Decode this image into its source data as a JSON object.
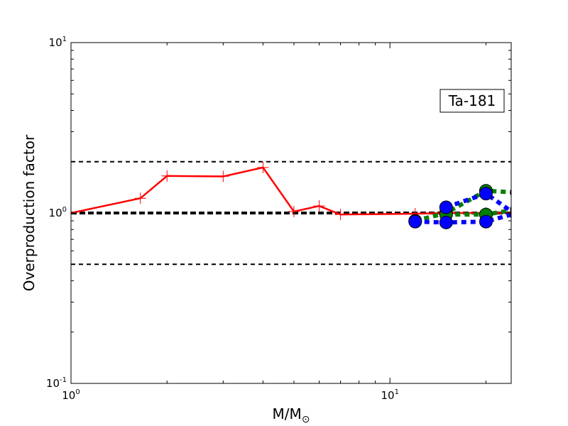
{
  "chart_data": {
    "type": "line",
    "xlabel": "M/M",
    "xlabel_symbol": "⊙",
    "ylabel": "Overproduction factor",
    "x_scale": "log",
    "y_scale": "log",
    "xlim": [
      1,
      24
    ],
    "ylim": [
      0.1,
      10
    ],
    "x_ticks": [
      {
        "value": 1,
        "base": "10",
        "exp": "0"
      },
      {
        "value": 10,
        "base": "10",
        "exp": "1"
      }
    ],
    "y_ticks": [
      {
        "value": 0.1,
        "base": "10",
        "exp": "-1"
      },
      {
        "value": 1,
        "base": "10",
        "exp": "0"
      },
      {
        "value": 10,
        "base": "10",
        "exp": "1"
      }
    ],
    "annotation": "Ta-181",
    "reference_lines": [
      {
        "y": 2.0,
        "style": "dashed",
        "color": "#000000",
        "width": 2
      },
      {
        "y": 1.0,
        "style": "dashed",
        "color": "#000000",
        "width": 4
      },
      {
        "y": 0.5,
        "style": "dashed",
        "color": "#000000",
        "width": 2
      }
    ],
    "series": [
      {
        "color": "#ff0000",
        "style": "solid",
        "marker": "plus",
        "x": [
          1.0,
          1.65,
          2.0,
          3.0,
          4.0,
          5.0,
          6.0,
          7.0,
          12.0,
          15.0,
          20.0,
          25.0
        ],
        "y": [
          1.0,
          1.22,
          1.65,
          1.64,
          1.85,
          1.02,
          1.1,
          0.98,
          0.99,
          1.0,
          1.0,
          1.0
        ]
      },
      {
        "color": "#008000",
        "style": "dotted",
        "marker": "circle",
        "x": [
          12.0,
          15.0,
          20.0,
          25.0
        ],
        "y": [
          0.9,
          1.0,
          1.35,
          1.32
        ]
      },
      {
        "color": "#008000",
        "style": "dotted",
        "marker": "circle",
        "x": [
          15.0,
          20.0,
          25.0
        ],
        "y": [
          0.98,
          0.98,
          1.05
        ]
      },
      {
        "color": "#0000ff",
        "style": "dotted",
        "marker": "circle",
        "x": [
          12.0,
          15.0,
          20.0,
          25.0
        ],
        "y": [
          0.89,
          0.88,
          0.89,
          1.0
        ]
      },
      {
        "color": "#0000ff",
        "style": "dotted",
        "marker": "circle",
        "x": [
          15.0,
          20.0,
          25.0
        ],
        "y": [
          1.08,
          1.3,
          0.97
        ]
      }
    ]
  }
}
